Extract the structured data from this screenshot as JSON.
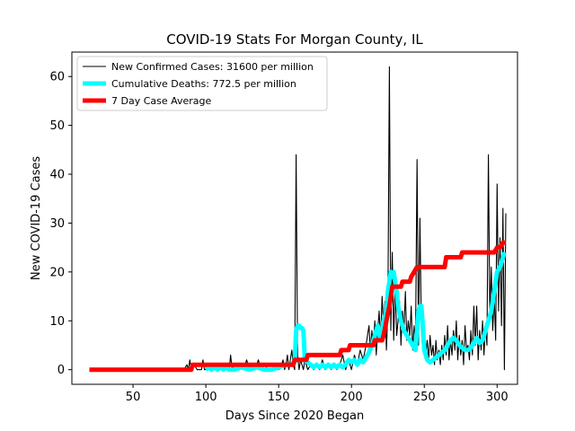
{
  "chart_data": {
    "type": "line",
    "title": "COVID-19 Stats For Morgan County, IL",
    "xlabel": "Days Since 2020 Began",
    "ylabel": "New COVID-19 Cases",
    "xlim": [
      8,
      314
    ],
    "ylim": [
      -3,
      65
    ],
    "xticks": [
      50,
      100,
      150,
      200,
      250,
      300
    ],
    "yticks": [
      0,
      10,
      20,
      30,
      40,
      50,
      60
    ],
    "grid": false,
    "legend_position": "upper left",
    "series": [
      {
        "name": "New Confirmed Cases: 31600 per million",
        "color": "#000000",
        "points": [
          [
            20,
            0
          ],
          [
            85,
            0
          ],
          [
            87,
            1
          ],
          [
            88,
            0
          ],
          [
            89,
            2
          ],
          [
            90,
            0
          ],
          [
            92,
            1
          ],
          [
            94,
            0
          ],
          [
            97,
            0
          ],
          [
            98,
            2
          ],
          [
            99,
            0
          ],
          [
            100,
            0
          ],
          [
            102,
            1
          ],
          [
            104,
            0
          ],
          [
            106,
            0
          ],
          [
            108,
            1
          ],
          [
            110,
            0
          ],
          [
            112,
            0
          ],
          [
            114,
            1
          ],
          [
            116,
            0
          ],
          [
            117,
            3
          ],
          [
            118,
            0
          ],
          [
            120,
            1
          ],
          [
            122,
            0
          ],
          [
            124,
            1
          ],
          [
            126,
            0
          ],
          [
            128,
            2
          ],
          [
            130,
            0
          ],
          [
            132,
            1
          ],
          [
            134,
            0
          ],
          [
            136,
            2
          ],
          [
            138,
            0
          ],
          [
            140,
            1
          ],
          [
            143,
            0
          ],
          [
            146,
            0
          ],
          [
            148,
            1
          ],
          [
            150,
            0
          ],
          [
            152,
            1
          ],
          [
            153,
            2
          ],
          [
            154,
            0
          ],
          [
            155,
            1
          ],
          [
            156,
            3
          ],
          [
            157,
            0
          ],
          [
            158,
            2
          ],
          [
            159,
            4
          ],
          [
            160,
            1
          ],
          [
            161,
            0
          ],
          [
            162,
            44
          ],
          [
            163,
            3
          ],
          [
            164,
            0
          ],
          [
            165,
            2
          ],
          [
            166,
            1
          ],
          [
            167,
            0
          ],
          [
            168,
            2
          ],
          [
            170,
            0
          ],
          [
            172,
            1
          ],
          [
            174,
            0
          ],
          [
            176,
            1
          ],
          [
            178,
            0
          ],
          [
            180,
            2
          ],
          [
            182,
            0
          ],
          [
            184,
            1
          ],
          [
            186,
            0
          ],
          [
            188,
            1
          ],
          [
            190,
            0
          ],
          [
            192,
            1
          ],
          [
            194,
            3
          ],
          [
            196,
            0
          ],
          [
            198,
            2
          ],
          [
            200,
            0
          ],
          [
            202,
            3
          ],
          [
            204,
            1
          ],
          [
            206,
            4
          ],
          [
            208,
            2
          ],
          [
            210,
            5
          ],
          [
            212,
            9
          ],
          [
            213,
            4
          ],
          [
            214,
            8
          ],
          [
            215,
            5
          ],
          [
            216,
            10
          ],
          [
            217,
            3
          ],
          [
            218,
            8
          ],
          [
            219,
            12
          ],
          [
            220,
            6
          ],
          [
            221,
            15
          ],
          [
            222,
            9
          ],
          [
            223,
            14
          ],
          [
            224,
            4
          ],
          [
            225,
            12
          ],
          [
            226,
            62
          ],
          [
            227,
            8
          ],
          [
            228,
            24
          ],
          [
            229,
            6
          ],
          [
            230,
            18
          ],
          [
            231,
            7
          ],
          [
            232,
            10
          ],
          [
            233,
            14
          ],
          [
            234,
            5
          ],
          [
            235,
            12
          ],
          [
            236,
            8
          ],
          [
            237,
            16
          ],
          [
            238,
            6
          ],
          [
            239,
            10
          ],
          [
            240,
            7
          ],
          [
            241,
            13
          ],
          [
            242,
            4
          ],
          [
            243,
            9
          ],
          [
            244,
            6
          ],
          [
            245,
            43
          ],
          [
            246,
            5
          ],
          [
            247,
            31
          ],
          [
            248,
            8
          ],
          [
            249,
            4
          ],
          [
            250,
            9
          ],
          [
            251,
            3
          ],
          [
            252,
            6
          ],
          [
            253,
            2
          ],
          [
            254,
            7
          ],
          [
            255,
            3
          ],
          [
            256,
            5
          ],
          [
            257,
            1
          ],
          [
            258,
            6
          ],
          [
            259,
            2
          ],
          [
            260,
            4
          ],
          [
            261,
            1
          ],
          [
            262,
            5
          ],
          [
            263,
            2
          ],
          [
            264,
            7
          ],
          [
            265,
            3
          ],
          [
            266,
            9
          ],
          [
            267,
            2
          ],
          [
            268,
            6
          ],
          [
            269,
            3
          ],
          [
            270,
            8
          ],
          [
            271,
            4
          ],
          [
            272,
            10
          ],
          [
            273,
            2
          ],
          [
            274,
            7
          ],
          [
            275,
            3
          ],
          [
            276,
            6
          ],
          [
            277,
            1
          ],
          [
            278,
            9
          ],
          [
            279,
            4
          ],
          [
            280,
            5
          ],
          [
            281,
            2
          ],
          [
            282,
            8
          ],
          [
            283,
            3
          ],
          [
            284,
            13
          ],
          [
            285,
            5
          ],
          [
            286,
            13
          ],
          [
            287,
            2
          ],
          [
            288,
            8
          ],
          [
            289,
            4
          ],
          [
            290,
            10
          ],
          [
            291,
            3
          ],
          [
            292,
            9
          ],
          [
            293,
            5
          ],
          [
            294,
            44
          ],
          [
            295,
            11
          ],
          [
            296,
            21
          ],
          [
            297,
            8
          ],
          [
            298,
            15
          ],
          [
            299,
            6
          ],
          [
            300,
            38
          ],
          [
            301,
            12
          ],
          [
            302,
            27
          ],
          [
            303,
            9
          ],
          [
            304,
            33
          ],
          [
            305,
            0
          ],
          [
            306,
            32
          ]
        ]
      },
      {
        "name": "Cumulative Deaths: 772.5 per million",
        "color": "#00ffff",
        "points": [
          [
            100,
            0
          ],
          [
            102,
            0.5
          ],
          [
            104,
            0
          ],
          [
            106,
            0.5
          ],
          [
            108,
            0
          ],
          [
            110,
            0.5
          ],
          [
            112,
            0
          ],
          [
            114,
            0.5
          ],
          [
            116,
            0
          ],
          [
            120,
            0
          ],
          [
            124,
            0.5
          ],
          [
            130,
            0
          ],
          [
            135,
            0.5
          ],
          [
            140,
            0
          ],
          [
            145,
            0
          ],
          [
            150,
            0.5
          ],
          [
            155,
            1
          ],
          [
            158,
            1
          ],
          [
            161,
            1.5
          ],
          [
            162,
            8
          ],
          [
            163,
            9
          ],
          [
            164,
            9
          ],
          [
            165,
            8.5
          ],
          [
            166,
            8.5
          ],
          [
            167,
            8
          ],
          [
            168,
            2
          ],
          [
            170,
            1.5
          ],
          [
            172,
            1
          ],
          [
            174,
            0.5
          ],
          [
            176,
            1
          ],
          [
            178,
            0.5
          ],
          [
            180,
            1
          ],
          [
            182,
            0.5
          ],
          [
            184,
            1
          ],
          [
            186,
            0.5
          ],
          [
            188,
            1
          ],
          [
            190,
            0.5
          ],
          [
            192,
            1
          ],
          [
            194,
            0.5
          ],
          [
            196,
            1
          ],
          [
            198,
            2
          ],
          [
            200,
            1.5
          ],
          [
            202,
            2
          ],
          [
            204,
            1
          ],
          [
            206,
            2
          ],
          [
            208,
            1.5
          ],
          [
            210,
            2.5
          ],
          [
            212,
            3.5
          ],
          [
            214,
            5
          ],
          [
            216,
            7
          ],
          [
            218,
            9
          ],
          [
            220,
            6
          ],
          [
            222,
            10
          ],
          [
            224,
            12
          ],
          [
            225,
            16
          ],
          [
            226,
            18
          ],
          [
            227,
            20
          ],
          [
            228,
            19
          ],
          [
            229,
            20
          ],
          [
            230,
            18
          ],
          [
            231,
            16
          ],
          [
            232,
            13
          ],
          [
            234,
            10
          ],
          [
            236,
            8
          ],
          [
            238,
            7
          ],
          [
            240,
            6
          ],
          [
            242,
            5
          ],
          [
            244,
            4
          ],
          [
            246,
            12
          ],
          [
            247,
            13
          ],
          [
            248,
            13
          ],
          [
            249,
            9
          ],
          [
            250,
            4
          ],
          [
            251,
            3
          ],
          [
            252,
            2
          ],
          [
            254,
            1.5
          ],
          [
            256,
            2
          ],
          [
            258,
            2.5
          ],
          [
            260,
            3
          ],
          [
            262,
            3.5
          ],
          [
            264,
            4
          ],
          [
            266,
            5
          ],
          [
            268,
            6
          ],
          [
            270,
            6.5
          ],
          [
            272,
            6
          ],
          [
            274,
            5
          ],
          [
            276,
            4.5
          ],
          [
            278,
            4
          ],
          [
            280,
            4
          ],
          [
            282,
            4.5
          ],
          [
            284,
            5.5
          ],
          [
            286,
            6.5
          ],
          [
            288,
            5.5
          ],
          [
            290,
            6
          ],
          [
            292,
            8
          ],
          [
            294,
            10
          ],
          [
            296,
            12
          ],
          [
            298,
            16
          ],
          [
            300,
            20
          ],
          [
            302,
            21
          ],
          [
            303,
            22
          ],
          [
            304,
            23
          ],
          [
            305,
            24
          ]
        ]
      },
      {
        "name": "7 Day Case Average",
        "color": "#ff0000",
        "points": [
          [
            20,
            0
          ],
          [
            90,
            0
          ],
          [
            91,
            1
          ],
          [
            160,
            1
          ],
          [
            161,
            2
          ],
          [
            169,
            2
          ],
          [
            170,
            3
          ],
          [
            192,
            3
          ],
          [
            193,
            4
          ],
          [
            198,
            4
          ],
          [
            199,
            5
          ],
          [
            215,
            5
          ],
          [
            216,
            6
          ],
          [
            221,
            6
          ],
          [
            222,
            7
          ],
          [
            224,
            10
          ],
          [
            226,
            13
          ],
          [
            228,
            17
          ],
          [
            234,
            17
          ],
          [
            235,
            18
          ],
          [
            240,
            18
          ],
          [
            241,
            19
          ],
          [
            243,
            20
          ],
          [
            245,
            21
          ],
          [
            264,
            21
          ],
          [
            265,
            23
          ],
          [
            275,
            23
          ],
          [
            276,
            24
          ],
          [
            298,
            24
          ],
          [
            300,
            25
          ],
          [
            302,
            25
          ],
          [
            304,
            26
          ],
          [
            306,
            26
          ]
        ]
      }
    ]
  }
}
